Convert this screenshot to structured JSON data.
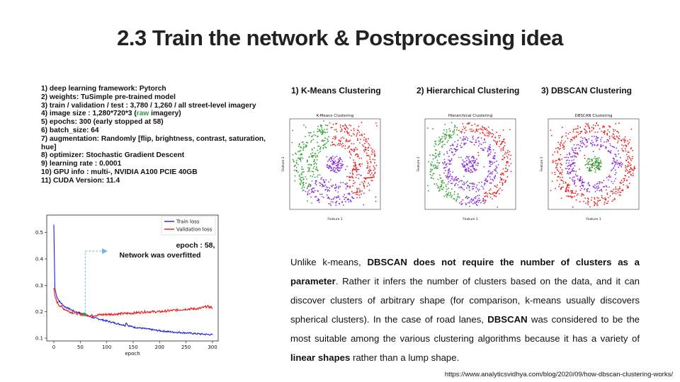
{
  "slide": {
    "title": "2.3 Train the network & Postprocessing  idea",
    "config_items": [
      "1) deep learning framework: Pytorch",
      "2) weights: TuSimple pre-trained model",
      "3) train / validation / test : 3,780 / 1,260 / all  street-level imagery",
      "4) image size : 1,280*720*3 (",
      "5) epochs: 300 (early stopped at 58)",
      "6) batch_size: 64",
      "7) augmentation: Randomly [flip, brightness, contrast, saturation, hue]",
      "8) optimizer: Stochastic Gradient Descent",
      "9) learning rate : 0.0001",
      "10) GPU  info : multi-, NVIDIA A100 PCIE 40GB",
      "11) CUDA  Version: 11.4"
    ],
    "config_item4_raw": "raw",
    "config_item4_tail": " imagery)",
    "clustering_titles": [
      "1) K-Means Clustering",
      "2) Hierarchical Clustering",
      "3) DBSCAN  Clustering"
    ],
    "description": {
      "p1": "Unlike k-means, ",
      "b1": "DBSCAN does not require the number of clusters as a parameter",
      "p2": ". Rather it infers the number of clusters based on the data, and it can discover clusters of arbitrary shape (for comparison, k-means usually discovers spherical clusters). In the case of road lanes, ",
      "b2": "DBSCAN",
      "p3": " was considered to be the most suitable among the various clustering algorithms because it has a variety of ",
      "b3": "linear shapes",
      "p4": " rather than a lump shape."
    },
    "source_url": "https://www.analyticsvidhya.com/blog/2020/09/how-dbscan-clustering-works/"
  },
  "loss_chart": {
    "annotation_line1": "epoch : 58,",
    "annotation_line2": "Network was overfitted",
    "colors": {
      "train": "#1f1fd0",
      "validation": "#e81818",
      "marker": "#2e9e3e",
      "arrow": "#6fb7e0"
    }
  },
  "chart_data": [
    {
      "type": "line",
      "title": "",
      "xlabel": "epoch",
      "ylabel": "",
      "xlim": [
        0,
        300
      ],
      "ylim": [
        0.1,
        0.55
      ],
      "xticks": [
        0,
        50,
        100,
        150,
        200,
        250,
        300
      ],
      "yticks": [
        0.1,
        0.2,
        0.3,
        0.4,
        0.5
      ],
      "legend": "top-right",
      "marker_point": {
        "x": 58,
        "y": 0.19
      },
      "series": [
        {
          "name": "Train loss",
          "x": [
            0,
            2,
            5,
            10,
            20,
            30,
            40,
            50,
            58,
            70,
            80,
            100,
            120,
            135,
            137,
            140,
            150,
            175,
            200,
            225,
            250,
            275,
            300
          ],
          "values": [
            0.53,
            0.29,
            0.26,
            0.24,
            0.22,
            0.21,
            0.2,
            0.195,
            0.19,
            0.18,
            0.175,
            0.165,
            0.155,
            0.148,
            0.16,
            0.148,
            0.142,
            0.135,
            0.128,
            0.123,
            0.12,
            0.116,
            0.113
          ]
        },
        {
          "name": "Validation loss",
          "x": [
            0,
            2,
            5,
            10,
            20,
            30,
            40,
            50,
            58,
            70,
            80,
            100,
            125,
            150,
            175,
            200,
            225,
            250,
            275,
            290,
            300
          ],
          "values": [
            0.29,
            0.26,
            0.24,
            0.225,
            0.21,
            0.2,
            0.195,
            0.19,
            0.188,
            0.185,
            0.187,
            0.19,
            0.192,
            0.195,
            0.2,
            0.2,
            0.205,
            0.21,
            0.212,
            0.22,
            0.215
          ]
        }
      ]
    },
    {
      "type": "scatter",
      "title": "K-Means Clustering",
      "xlabel": "Feature 1",
      "ylabel": "Feature 2",
      "series": [
        {
          "name": "",
          "color": "#2ea02e",
          "shape": "left arc of outer ring and middle ring"
        },
        {
          "name": "",
          "color": "#e82020",
          "shape": "right arc of rings"
        },
        {
          "name": "",
          "color": "#8a2be2",
          "shape": "lower half of rings and center"
        }
      ]
    },
    {
      "type": "scatter",
      "title": "Hierarchical Clustering",
      "xlabel": "Feature 1",
      "ylabel": "Feature 2",
      "series": [
        {
          "name": "",
          "color": "#2ea02e",
          "shape": "lower-left arc"
        },
        {
          "name": "",
          "color": "#e82020",
          "shape": "right arc"
        },
        {
          "name": "",
          "color": "#8a2be2",
          "shape": "inner rings"
        }
      ]
    },
    {
      "type": "scatter",
      "title": "DBSCAN Clustering",
      "xlabel": "Feature 1",
      "ylabel": "Feature 2",
      "series": [
        {
          "name": "",
          "color": "#e82020",
          "shape": "outer ring"
        },
        {
          "name": "",
          "color": "#8a2be2",
          "shape": "middle ring"
        },
        {
          "name": "",
          "color": "#2ea02e",
          "shape": "inner cluster"
        },
        {
          "name": "",
          "color": "#e82020",
          "shape": "noise (scattered)"
        }
      ]
    }
  ]
}
